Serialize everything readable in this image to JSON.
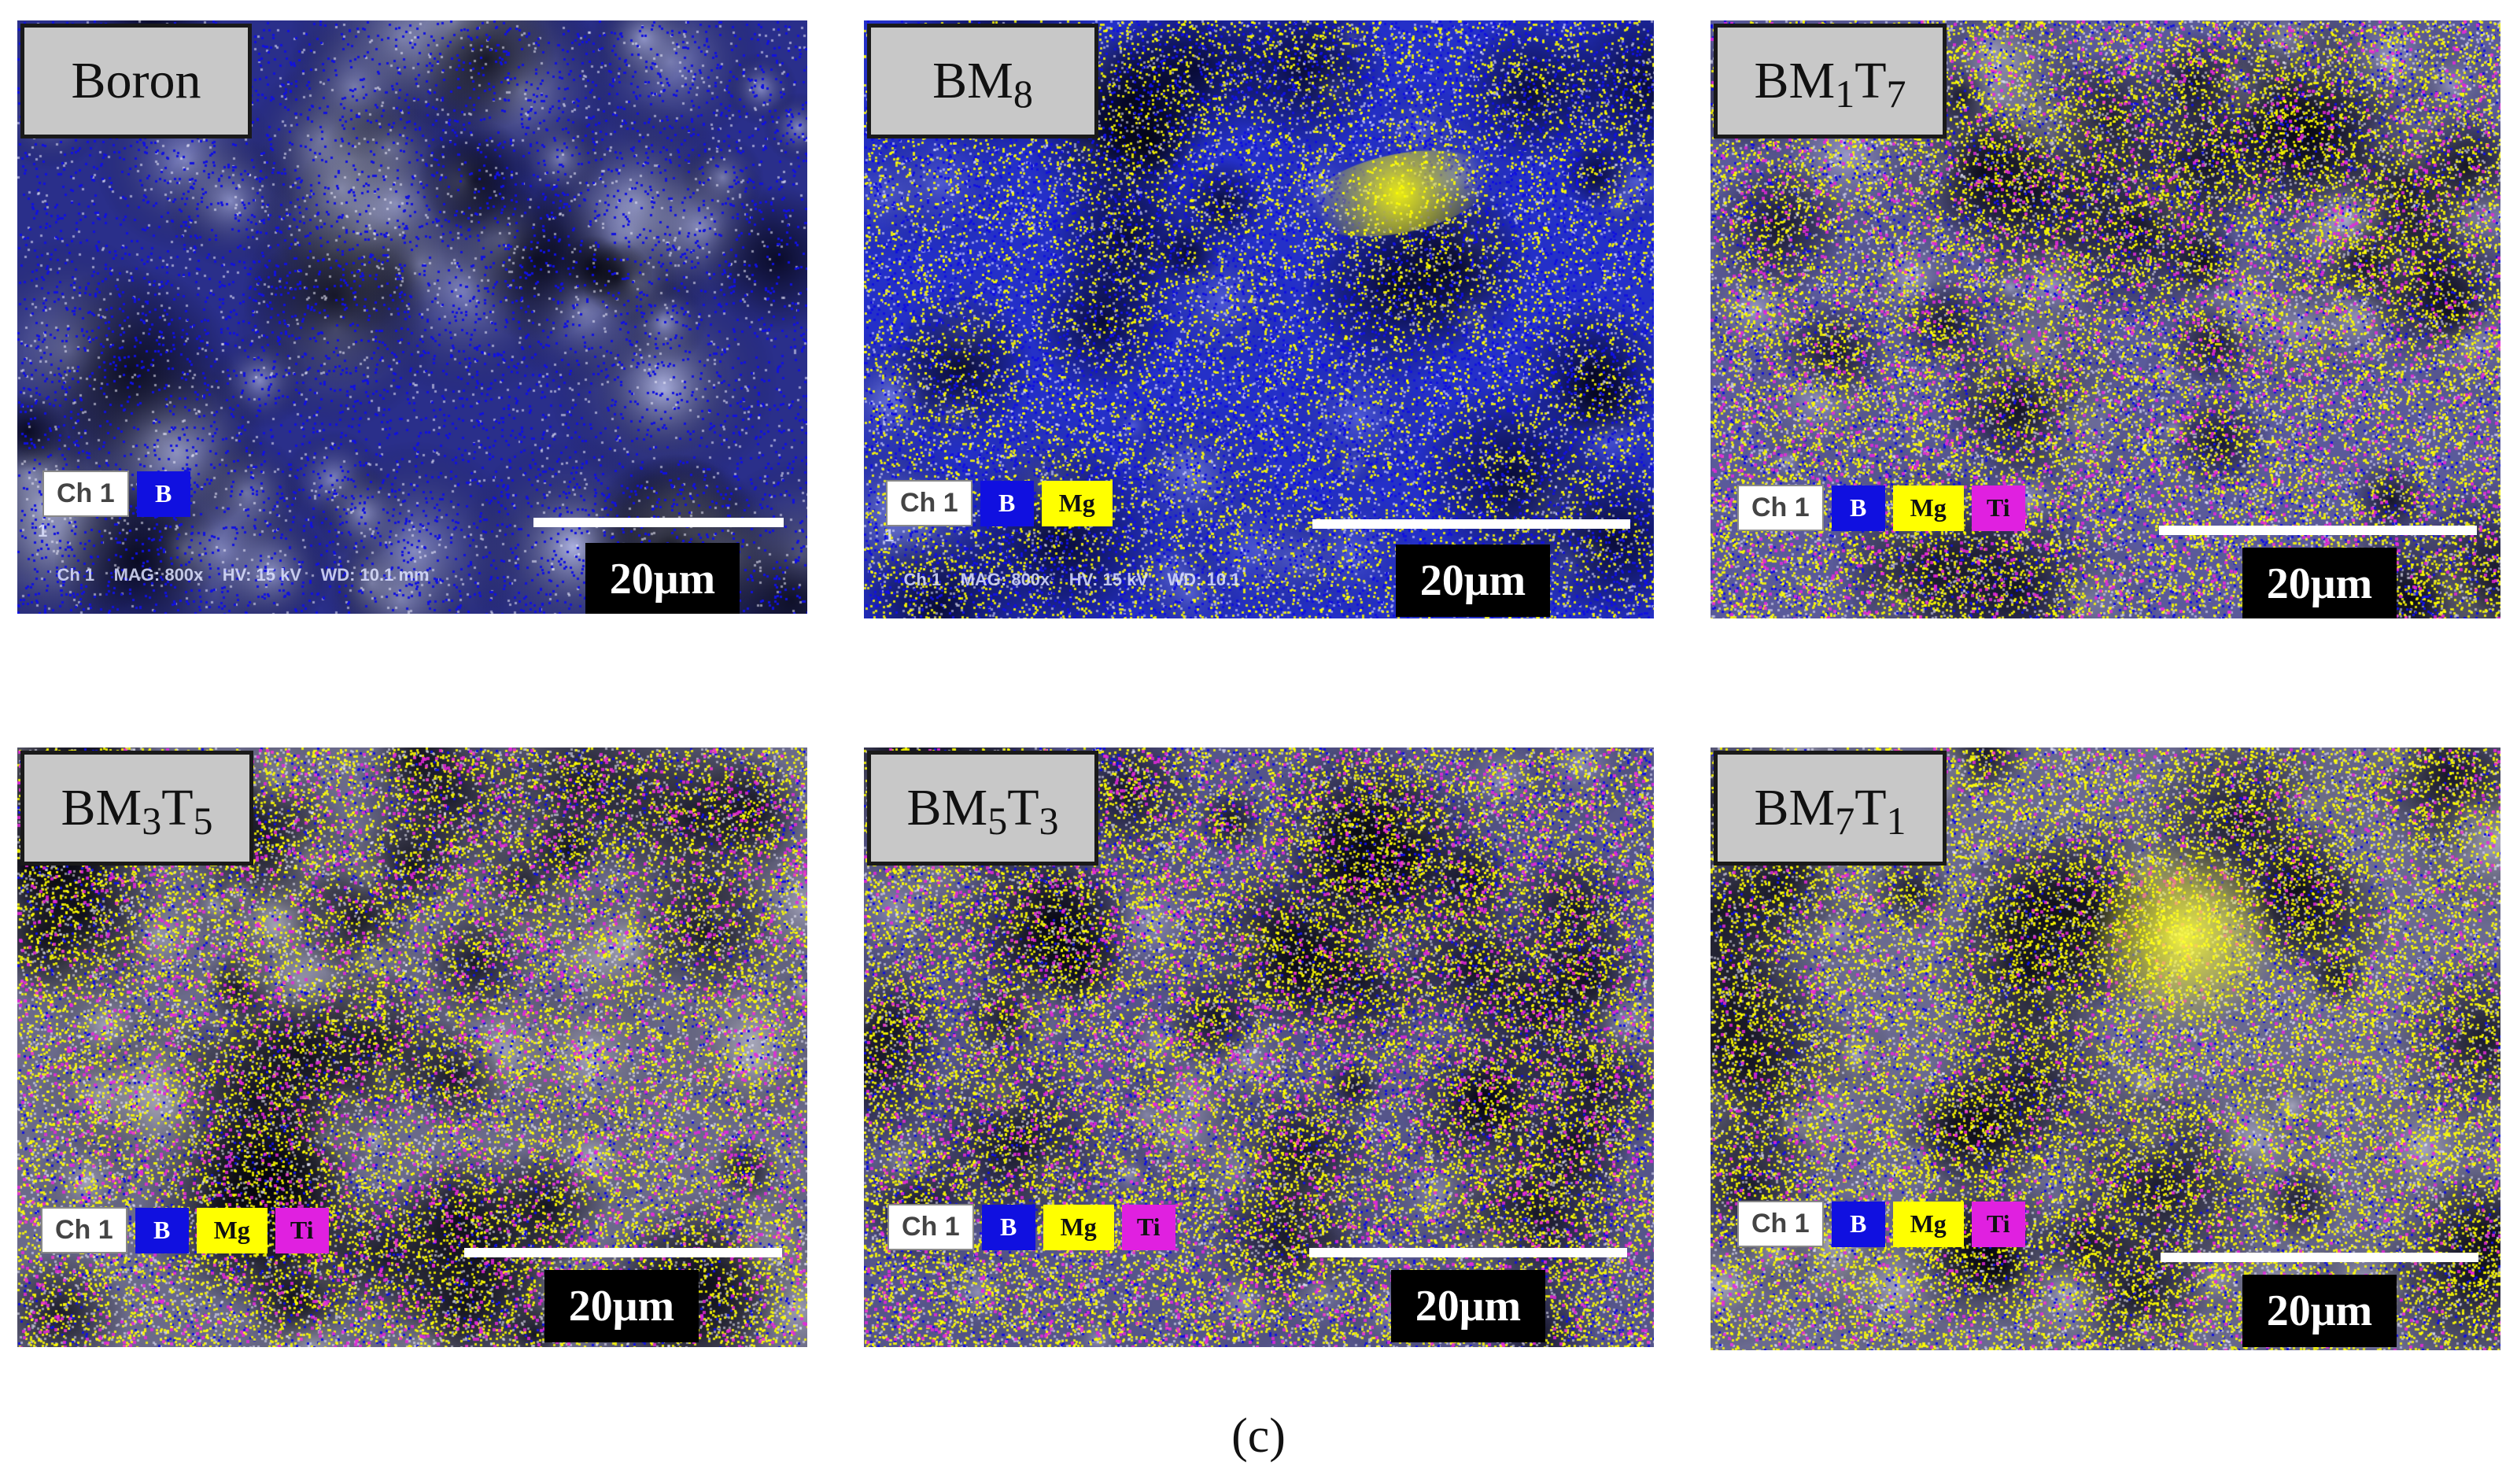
{
  "caption": "(c)",
  "scale_label": "20μm",
  "channel_label": "Ch 1",
  "colors": {
    "B": "#1010e0",
    "Mg": "#ffff00",
    "Ti": "#e020e0"
  },
  "panels": [
    {
      "title": "Boron",
      "title_parts": [
        "Boron"
      ],
      "legend": [
        "B"
      ],
      "meta_index": "1",
      "meta": "Ch 1    MAG: 800x    HV: 15 kV    WD: 10.1 mm",
      "style": "boron"
    },
    {
      "title": "BM8",
      "title_parts": [
        "BM",
        "8"
      ],
      "legend": [
        "B",
        "Mg"
      ],
      "meta_index": "1",
      "meta": "Ch 1    MAG: 800x    HV: 15 kV    WD: 10.1",
      "style": "bm8"
    },
    {
      "title": "BM1T7",
      "title_parts": [
        "BM",
        "1",
        "T",
        "7"
      ],
      "legend": [
        "B",
        "Mg",
        "Ti"
      ],
      "meta_index": "",
      "meta": "",
      "style": "bm1t7"
    },
    {
      "title": "BM3T5",
      "title_parts": [
        "BM",
        "3",
        "T",
        "5"
      ],
      "legend": [
        "B",
        "Mg",
        "Ti"
      ],
      "meta_index": "",
      "meta": "",
      "style": "bm3t5"
    },
    {
      "title": "BM5T3",
      "title_parts": [
        "BM",
        "5",
        "T",
        "3"
      ],
      "legend": [
        "B",
        "Mg",
        "Ti"
      ],
      "meta_index": "",
      "meta": "",
      "style": "bm5t3"
    },
    {
      "title": "BM7T1",
      "title_parts": [
        "BM",
        "7",
        "T",
        "1"
      ],
      "legend": [
        "B",
        "Mg",
        "Ti"
      ],
      "meta_index": "",
      "meta": "",
      "style": "bm7t1"
    }
  ]
}
